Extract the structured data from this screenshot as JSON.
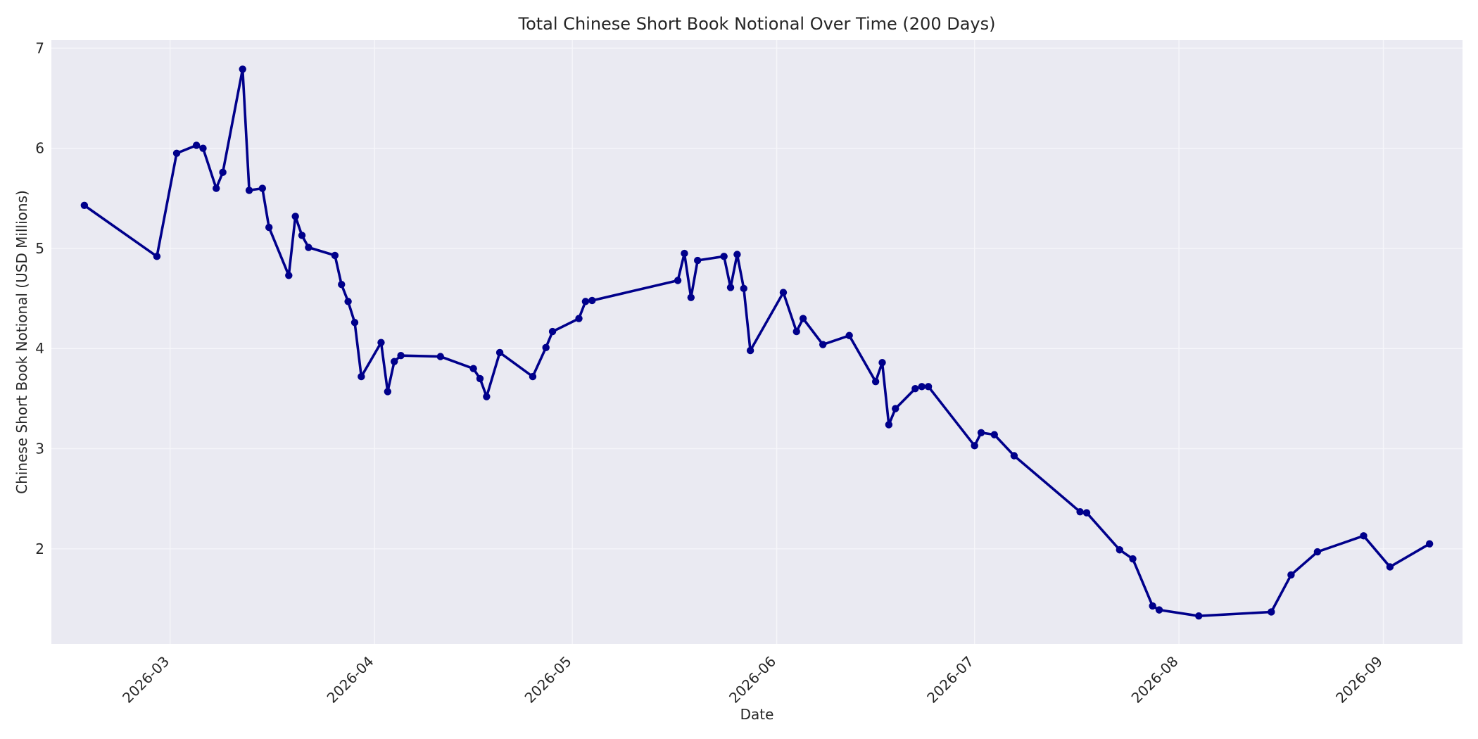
{
  "chart_data": {
    "type": "line",
    "title": "Total Chinese Short Book Notional Over Time (200 Days)",
    "xlabel": "Date",
    "ylabel": "Chinese Short Book Notional (USD Millions)",
    "x_range": [
      "2026-02-11",
      "2026-09-13"
    ],
    "ylim": [
      1.05,
      7.08
    ],
    "y_ticks": [
      2,
      3,
      4,
      5,
      6,
      7
    ],
    "x_ticks": [
      "2026-03-01",
      "2026-04-01",
      "2026-05-01",
      "2026-06-01",
      "2026-07-01",
      "2026-08-01",
      "2026-09-01"
    ],
    "x_tick_labels": [
      "2026-03",
      "2026-04",
      "2026-05",
      "2026-06",
      "2026-07",
      "2026-08",
      "2026-09"
    ],
    "grid": true,
    "legend": "none",
    "colors": {
      "line": "#00008b",
      "plot_bg": "#eaeaf2",
      "grid": "#f6f6fa",
      "text": "#262626"
    },
    "series": [
      {
        "points": [
          [
            "2026-02-16",
            5.43
          ],
          [
            "2026-02-27",
            4.92
          ],
          [
            "2026-03-02",
            5.95
          ],
          [
            "2026-03-05",
            6.03
          ],
          [
            "2026-03-06",
            6.0
          ],
          [
            "2026-03-08",
            5.6
          ],
          [
            "2026-03-09",
            5.76
          ],
          [
            "2026-03-12",
            6.79
          ],
          [
            "2026-03-13",
            5.58
          ],
          [
            "2026-03-15",
            5.6
          ],
          [
            "2026-03-16",
            5.21
          ],
          [
            "2026-03-19",
            4.73
          ],
          [
            "2026-03-20",
            5.32
          ],
          [
            "2026-03-21",
            5.13
          ],
          [
            "2026-03-22",
            5.01
          ],
          [
            "2026-03-26",
            4.93
          ],
          [
            "2026-03-27",
            4.64
          ],
          [
            "2026-03-28",
            4.47
          ],
          [
            "2026-03-29",
            4.26
          ],
          [
            "2026-03-30",
            3.72
          ],
          [
            "2026-04-02",
            4.06
          ],
          [
            "2026-04-03",
            3.57
          ],
          [
            "2026-04-04",
            3.87
          ],
          [
            "2026-04-05",
            3.93
          ],
          [
            "2026-04-11",
            3.92
          ],
          [
            "2026-04-16",
            3.8
          ],
          [
            "2026-04-17",
            3.7
          ],
          [
            "2026-04-18",
            3.52
          ],
          [
            "2026-04-20",
            3.96
          ],
          [
            "2026-04-25",
            3.72
          ],
          [
            "2026-04-27",
            4.01
          ],
          [
            "2026-04-28",
            4.17
          ],
          [
            "2026-05-02",
            4.3
          ],
          [
            "2026-05-03",
            4.47
          ],
          [
            "2026-05-04",
            4.48
          ],
          [
            "2026-05-17",
            4.68
          ],
          [
            "2026-05-18",
            4.95
          ],
          [
            "2026-05-19",
            4.51
          ],
          [
            "2026-05-20",
            4.88
          ],
          [
            "2026-05-24",
            4.92
          ],
          [
            "2026-05-25",
            4.61
          ],
          [
            "2026-05-26",
            4.94
          ],
          [
            "2026-05-27",
            4.6
          ],
          [
            "2026-05-28",
            3.98
          ],
          [
            "2026-06-02",
            4.56
          ],
          [
            "2026-06-04",
            4.17
          ],
          [
            "2026-06-05",
            4.3
          ],
          [
            "2026-06-08",
            4.04
          ],
          [
            "2026-06-12",
            4.13
          ],
          [
            "2026-06-16",
            3.67
          ],
          [
            "2026-06-17",
            3.86
          ],
          [
            "2026-06-18",
            3.24
          ],
          [
            "2026-06-19",
            3.4
          ],
          [
            "2026-06-22",
            3.6
          ],
          [
            "2026-06-23",
            3.62
          ],
          [
            "2026-06-24",
            3.62
          ],
          [
            "2026-07-01",
            3.03
          ],
          [
            "2026-07-02",
            3.16
          ],
          [
            "2026-07-04",
            3.14
          ],
          [
            "2026-07-07",
            2.93
          ],
          [
            "2026-07-17",
            2.37
          ],
          [
            "2026-07-18",
            2.36
          ],
          [
            "2026-07-23",
            1.99
          ],
          [
            "2026-07-25",
            1.9
          ],
          [
            "2026-07-28",
            1.43
          ],
          [
            "2026-07-29",
            1.39
          ],
          [
            "2026-08-04",
            1.33
          ],
          [
            "2026-08-15",
            1.37
          ],
          [
            "2026-08-18",
            1.74
          ],
          [
            "2026-08-22",
            1.97
          ],
          [
            "2026-08-29",
            2.13
          ],
          [
            "2026-09-02",
            1.82
          ],
          [
            "2026-09-08",
            2.05
          ]
        ]
      }
    ]
  }
}
